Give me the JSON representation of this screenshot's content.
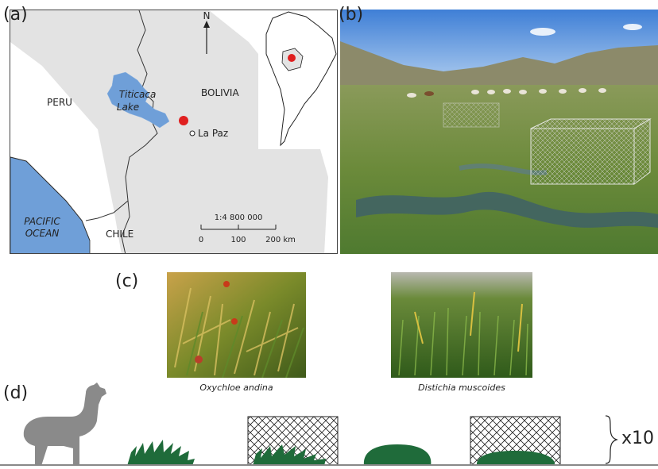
{
  "panels": {
    "a": "(a)",
    "b": "(b)",
    "c": "(c)",
    "d": "(d)"
  },
  "map": {
    "north": "N",
    "countries": {
      "peru": "PERU",
      "bolivia": "BOLIVIA",
      "chile": "CHILE"
    },
    "lake_line1": "Titicaca",
    "lake_line2": "Lake",
    "ocean_line1": "PACIFIC",
    "ocean_line2": "OCEAN",
    "city": "La Paz",
    "scale": {
      "ratio": "1:4 800 000",
      "ticks": [
        "0",
        "100",
        "200 km"
      ]
    },
    "colors": {
      "water": "#6f9fd8",
      "land_highlight": "#e3e3e3",
      "site_marker": "#e02020"
    }
  },
  "species": [
    {
      "name": "Oxychloe andina"
    },
    {
      "name": "Distichia muscoides"
    }
  ],
  "diagram": {
    "replicates": "x10",
    "colors": {
      "llama": "#8a8a8a",
      "plant": "#1f6b3a"
    }
  }
}
